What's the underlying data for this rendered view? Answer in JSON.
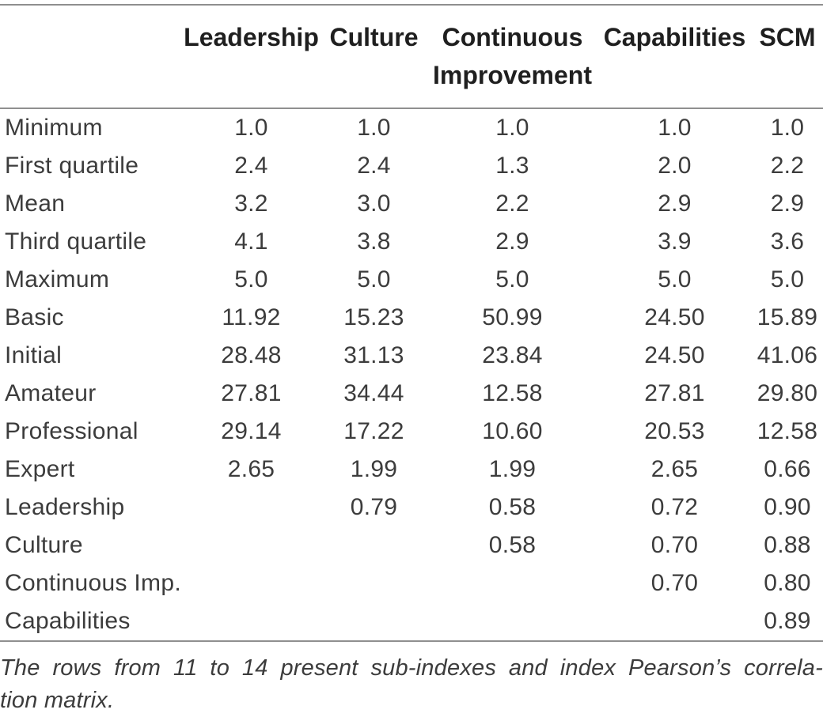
{
  "table": {
    "columns": [
      "",
      "Leadership",
      "Culture",
      "Continuous Improvement",
      "Capabilities",
      "SCM"
    ],
    "rows": [
      {
        "label": "Minimum",
        "values": [
          "1.0",
          "1.0",
          "1.0",
          "1.0",
          "1.0"
        ]
      },
      {
        "label": "First quartile",
        "values": [
          "2.4",
          "2.4",
          "1.3",
          "2.0",
          "2.2"
        ]
      },
      {
        "label": "Mean",
        "values": [
          "3.2",
          "3.0",
          "2.2",
          "2.9",
          "2.9"
        ]
      },
      {
        "label": "Third quartile",
        "values": [
          "4.1",
          "3.8",
          "2.9",
          "3.9",
          "3.6"
        ]
      },
      {
        "label": "Maximum",
        "values": [
          "5.0",
          "5.0",
          "5.0",
          "5.0",
          "5.0"
        ]
      },
      {
        "label": "Basic",
        "values": [
          "11.92",
          "15.23",
          "50.99",
          "24.50",
          "15.89"
        ]
      },
      {
        "label": "Initial",
        "values": [
          "28.48",
          "31.13",
          "23.84",
          "24.50",
          "41.06"
        ]
      },
      {
        "label": "Amateur",
        "values": [
          "27.81",
          "34.44",
          "12.58",
          "27.81",
          "29.80"
        ]
      },
      {
        "label": "Professional",
        "values": [
          "29.14",
          "17.22",
          "10.60",
          "20.53",
          "12.58"
        ]
      },
      {
        "label": "Expert",
        "values": [
          "2.65",
          "1.99",
          "1.99",
          "2.65",
          "0.66"
        ]
      },
      {
        "label": "Leadership",
        "values": [
          "",
          "0.79",
          "0.58",
          "0.72",
          "0.90"
        ]
      },
      {
        "label": "Culture",
        "values": [
          "",
          "",
          "0.58",
          "0.70",
          "0.88"
        ]
      },
      {
        "label": "Continuous Imp.",
        "values": [
          "",
          "",
          "",
          "0.70",
          "0.80"
        ]
      },
      {
        "label": "Capabilities",
        "values": [
          "",
          "",
          "",
          "",
          "0.89"
        ]
      }
    ]
  },
  "footnote": {
    "line1": "The rows from 11 to 14 present sub-indexes and index Pearson’s correla-",
    "line2": "tion matrix."
  },
  "colors": {
    "rule": "#8f8f8f",
    "header_text": "#1f1f1f",
    "body_text": "#3c3c3c",
    "background": "#ffffff"
  }
}
